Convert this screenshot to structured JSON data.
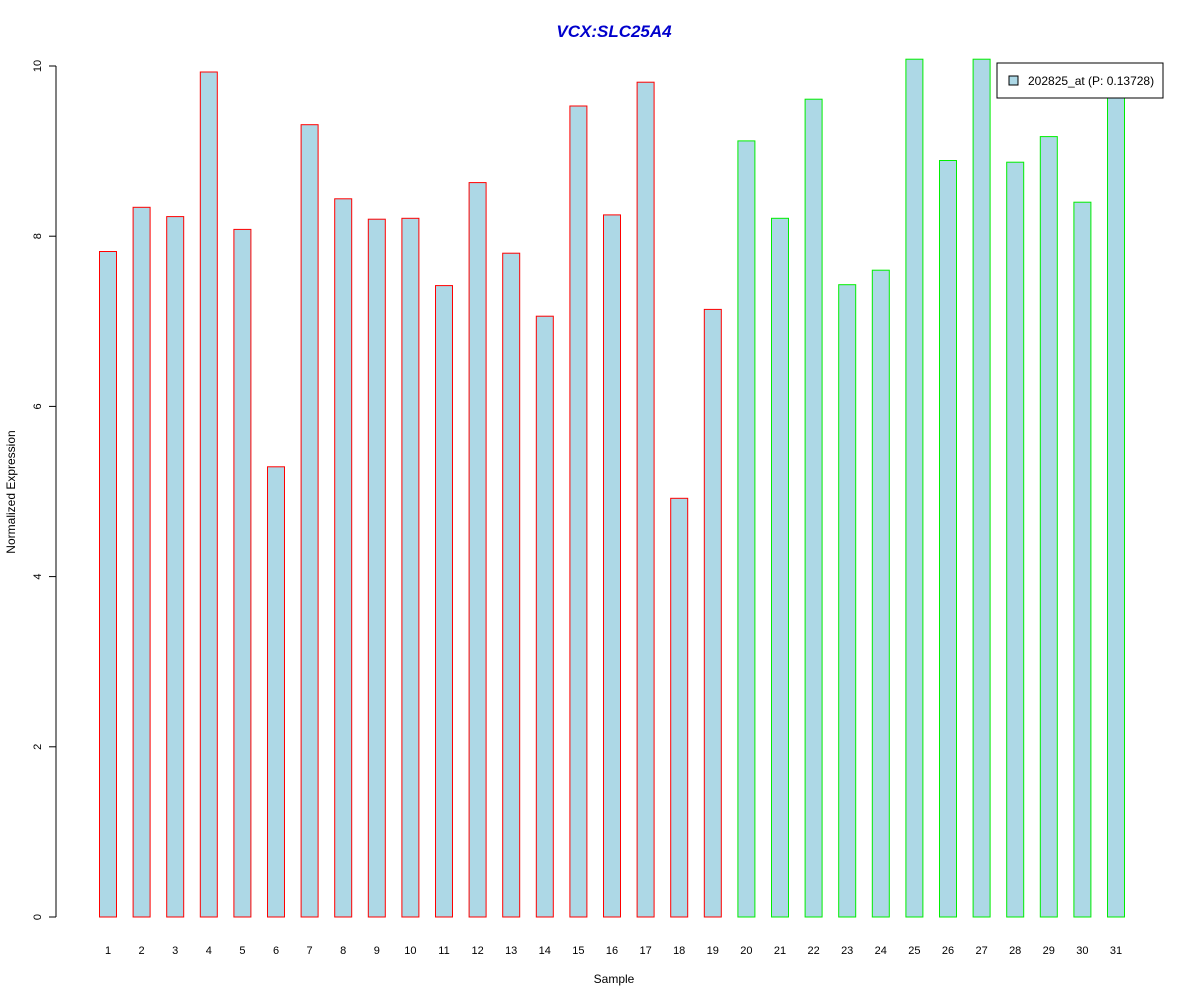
{
  "chart_data": {
    "type": "bar",
    "title": "VCX:SLC25A4",
    "xlabel": "Sample",
    "ylabel": "Normalized Expression",
    "ylim": [
      0,
      10
    ],
    "yticks": [
      0,
      2,
      4,
      6,
      8,
      10
    ],
    "categories": [
      "1",
      "2",
      "3",
      "4",
      "5",
      "6",
      "7",
      "8",
      "9",
      "10",
      "11",
      "12",
      "13",
      "14",
      "15",
      "16",
      "17",
      "18",
      "19",
      "20",
      "21",
      "22",
      "23",
      "24",
      "25",
      "26",
      "27",
      "28",
      "29",
      "30",
      "31"
    ],
    "series": [
      {
        "name": "202825_at (P: 0.13728)",
        "fill": "#add8e6",
        "values": [
          7.82,
          8.34,
          8.23,
          9.93,
          8.08,
          5.29,
          9.31,
          8.44,
          8.2,
          8.21,
          7.42,
          8.63,
          7.8,
          7.06,
          9.53,
          8.25,
          9.81,
          4.92,
          7.14,
          9.12,
          8.21,
          9.61,
          7.43,
          7.6,
          10.08,
          8.89,
          10.08,
          8.87,
          9.17,
          8.4,
          9.7
        ],
        "groups": [
          1,
          1,
          1,
          1,
          1,
          1,
          1,
          1,
          1,
          1,
          1,
          1,
          1,
          1,
          1,
          1,
          1,
          1,
          1,
          2,
          2,
          2,
          2,
          2,
          2,
          2,
          2,
          2,
          2,
          2,
          2
        ]
      }
    ],
    "group_colors": {
      "1": "#ff0000",
      "2": "#00ee00"
    },
    "legend_position": "top-right",
    "grid": false
  }
}
